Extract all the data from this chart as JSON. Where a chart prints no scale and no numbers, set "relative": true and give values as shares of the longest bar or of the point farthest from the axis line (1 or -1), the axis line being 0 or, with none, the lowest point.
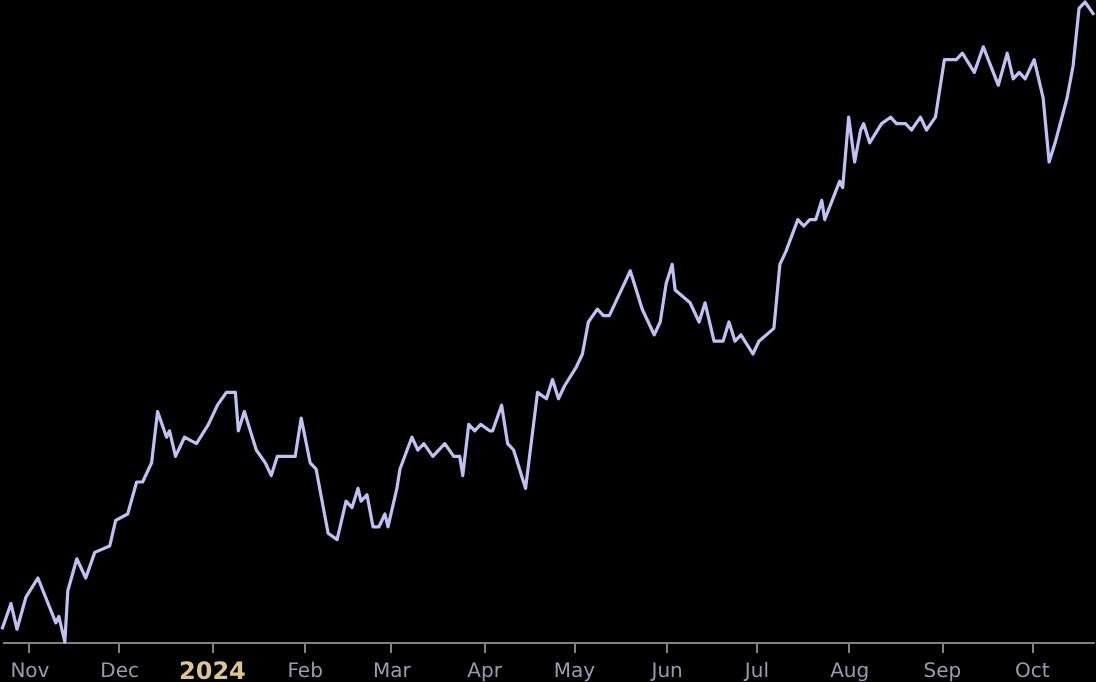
{
  "chart_data": {
    "type": "line",
    "relative": true,
    "grid": false,
    "xlim": [
      "2023-10-23",
      "2024-10-22"
    ],
    "xticks": [
      {
        "value": "2023-11-01",
        "label": "Nov"
      },
      {
        "value": "2023-12-01",
        "label": "Dec"
      },
      {
        "value": "2024-01-01",
        "label": "2024"
      },
      {
        "value": "2024-02-01",
        "label": "Feb"
      },
      {
        "value": "2024-03-01",
        "label": "Mar"
      },
      {
        "value": "2024-04-01",
        "label": "Apr"
      },
      {
        "value": "2024-05-01",
        "label": "May"
      },
      {
        "value": "2024-06-01",
        "label": "Jun"
      },
      {
        "value": "2024-07-01",
        "label": "Jul"
      },
      {
        "value": "2024-08-01",
        "label": "Aug"
      },
      {
        "value": "2024-09-01",
        "label": "Sep"
      },
      {
        "value": "2024-10-01",
        "label": "Oct"
      }
    ],
    "x": [
      "2023-10-23",
      "2023-10-26",
      "2023-10-28",
      "2023-10-31",
      "2023-11-04",
      "2023-11-10",
      "2023-11-11",
      "2023-11-13",
      "2023-11-14",
      "2023-11-17",
      "2023-11-20",
      "2023-11-23",
      "2023-11-28",
      "2023-11-30",
      "2023-12-04",
      "2023-12-07",
      "2023-12-09",
      "2023-12-12",
      "2023-12-14",
      "2023-12-17",
      "2023-12-18",
      "2023-12-20",
      "2023-12-23",
      "2023-12-27",
      "2023-12-31",
      "2024-01-03",
      "2024-01-06",
      "2024-01-09",
      "2024-01-10",
      "2024-01-12",
      "2024-01-16",
      "2024-01-19",
      "2024-01-21",
      "2024-01-23",
      "2024-01-27",
      "2024-01-29",
      "2024-01-31",
      "2024-02-03",
      "2024-02-05",
      "2024-02-09",
      "2024-02-12",
      "2024-02-15",
      "2024-02-17",
      "2024-02-19",
      "2024-02-20",
      "2024-02-22",
      "2024-02-24",
      "2024-02-26",
      "2024-02-28",
      "2024-02-29",
      "2024-03-03",
      "2024-03-04",
      "2024-03-08",
      "2024-03-10",
      "2024-03-12",
      "2024-03-15",
      "2024-03-19",
      "2024-03-22",
      "2024-03-24",
      "2024-03-25",
      "2024-03-27",
      "2024-03-29",
      "2024-03-31",
      "2024-04-03",
      "2024-04-04",
      "2024-04-07",
      "2024-04-09",
      "2024-04-11",
      "2024-04-15",
      "2024-04-19",
      "2024-04-22",
      "2024-04-24",
      "2024-04-26",
      "2024-04-28",
      "2024-05-02",
      "2024-05-04",
      "2024-05-06",
      "2024-05-09",
      "2024-05-11",
      "2024-05-13",
      "2024-05-18",
      "2024-05-20",
      "2024-05-24",
      "2024-05-28",
      "2024-05-30",
      "2024-06-01",
      "2024-06-03",
      "2024-06-04",
      "2024-06-09",
      "2024-06-12",
      "2024-06-14",
      "2024-06-17",
      "2024-06-20",
      "2024-06-22",
      "2024-06-24",
      "2024-06-26",
      "2024-06-30",
      "2024-07-02",
      "2024-07-07",
      "2024-07-09",
      "2024-07-11",
      "2024-07-15",
      "2024-07-17",
      "2024-07-19",
      "2024-07-21",
      "2024-07-23",
      "2024-07-24",
      "2024-07-29",
      "2024-07-30",
      "2024-08-01",
      "2024-08-03",
      "2024-08-05",
      "2024-08-06",
      "2024-08-08",
      "2024-08-12",
      "2024-08-15",
      "2024-08-17",
      "2024-08-20",
      "2024-08-22",
      "2024-08-25",
      "2024-08-27",
      "2024-08-30",
      "2024-09-02",
      "2024-09-06",
      "2024-09-08",
      "2024-09-12",
      "2024-09-15",
      "2024-09-20",
      "2024-09-23",
      "2024-09-25",
      "2024-09-27",
      "2024-09-29",
      "2024-10-02",
      "2024-10-05",
      "2024-10-07",
      "2024-10-09",
      "2024-10-13",
      "2024-10-15",
      "2024-10-17",
      "2024-10-19",
      "2024-10-22"
    ],
    "series": [
      {
        "color": "#c0c0f4",
        "values": [
          0.02,
          0.06,
          0.02,
          0.07,
          0.1,
          0.03,
          0.04,
          0.0,
          0.08,
          0.13,
          0.1,
          0.14,
          0.15,
          0.19,
          0.2,
          0.25,
          0.25,
          0.28,
          0.36,
          0.32,
          0.33,
          0.29,
          0.32,
          0.31,
          0.34,
          0.37,
          0.39,
          0.39,
          0.33,
          0.36,
          0.3,
          0.28,
          0.26,
          0.29,
          0.29,
          0.29,
          0.35,
          0.28,
          0.27,
          0.17,
          0.16,
          0.22,
          0.21,
          0.24,
          0.22,
          0.23,
          0.18,
          0.18,
          0.2,
          0.18,
          0.24,
          0.27,
          0.32,
          0.3,
          0.31,
          0.29,
          0.31,
          0.29,
          0.29,
          0.26,
          0.34,
          0.33,
          0.34,
          0.33,
          0.33,
          0.37,
          0.31,
          0.3,
          0.24,
          0.39,
          0.38,
          0.41,
          0.38,
          0.4,
          0.43,
          0.45,
          0.5,
          0.52,
          0.51,
          0.51,
          0.56,
          0.58,
          0.52,
          0.48,
          0.5,
          0.56,
          0.59,
          0.55,
          0.53,
          0.5,
          0.53,
          0.47,
          0.47,
          0.5,
          0.47,
          0.48,
          0.45,
          0.47,
          0.49,
          0.59,
          0.61,
          0.66,
          0.65,
          0.66,
          0.66,
          0.69,
          0.66,
          0.72,
          0.71,
          0.82,
          0.75,
          0.8,
          0.81,
          0.78,
          0.81,
          0.82,
          0.81,
          0.81,
          0.8,
          0.82,
          0.8,
          0.82,
          0.91,
          0.91,
          0.92,
          0.89,
          0.93,
          0.87,
          0.92,
          0.88,
          0.89,
          0.88,
          0.91,
          0.85,
          0.75,
          0.78,
          0.85,
          0.9,
          0.99,
          1.0,
          0.98
        ]
      }
    ]
  }
}
